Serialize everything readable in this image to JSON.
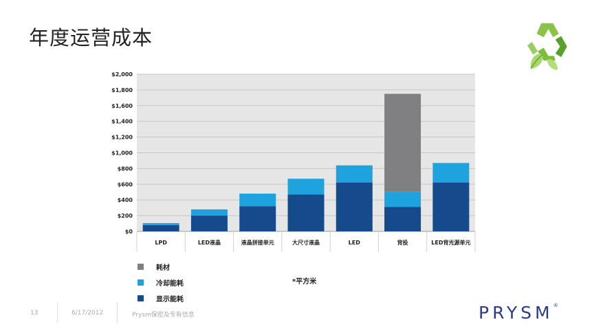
{
  "slide": {
    "title": "年度运营成本",
    "footnote": "*平方米",
    "page_number": "13",
    "date": "6/17/2012",
    "confidential": "Prysm保密及专有信息",
    "brand": "PRYSM",
    "brand_mark": "®",
    "logo_icon": "recycle-icon"
  },
  "colors": {
    "consumables": "#808083",
    "cooling": "#1fa3df",
    "display": "#154a8c",
    "plot_bg": "#e6e6e6",
    "brand": "#2b3a8c"
  },
  "chart_data": {
    "type": "bar",
    "stacked": true,
    "title": "",
    "xlabel": "",
    "ylabel": "",
    "ylim": [
      0,
      2000
    ],
    "yticks": [
      0,
      200,
      400,
      600,
      800,
      1000,
      1200,
      1400,
      1600,
      1800,
      2000
    ],
    "ytick_labels": [
      "$0",
      "$200",
      "$400",
      "$600",
      "$800",
      "$1,000",
      "$1,200",
      "$1,400",
      "$1,600",
      "$1,800",
      "$2,000"
    ],
    "grid": true,
    "categories": [
      "LPD",
      "LED液晶",
      "液晶拼接单元",
      "大尺寸液晶",
      "LED",
      "背投",
      "LED背光源单元"
    ],
    "series": [
      {
        "name": "显示能耗",
        "color": "#154a8c",
        "values": [
          80,
          200,
          320,
          470,
          620,
          310,
          620
        ]
      },
      {
        "name": "冷却能耗",
        "color": "#1fa3df",
        "values": [
          25,
          80,
          160,
          200,
          220,
          190,
          250
        ]
      },
      {
        "name": "耗材",
        "color": "#808083",
        "values": [
          0,
          0,
          0,
          0,
          0,
          1250,
          0
        ]
      }
    ],
    "legend": [
      {
        "name": "耗材",
        "color": "#808083"
      },
      {
        "name": "冷却能耗",
        "color": "#1fa3df"
      },
      {
        "name": "显示能耗",
        "color": "#154a8c"
      }
    ],
    "legend_position": "bottom-left"
  }
}
